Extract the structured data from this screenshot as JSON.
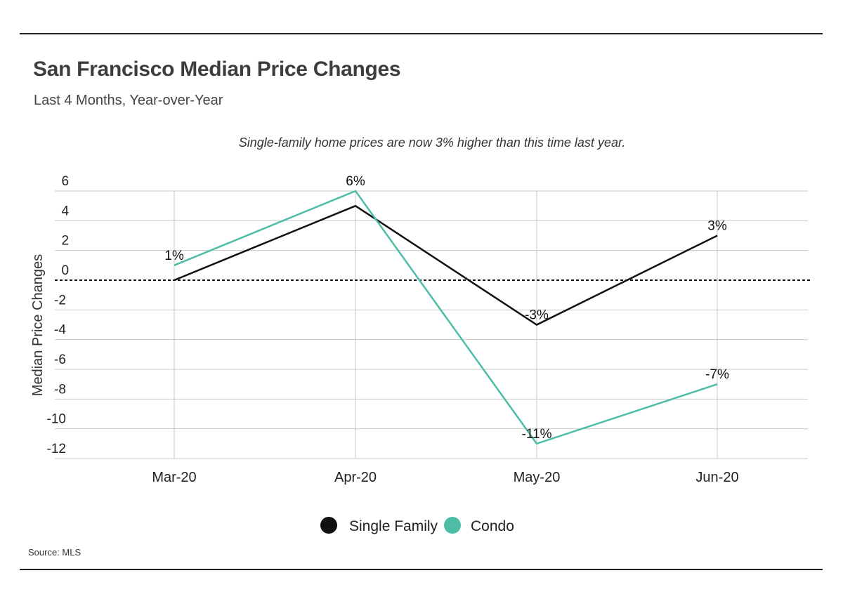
{
  "header": {
    "title": "San Francisco Median Price Changes",
    "subtitle": "Last 4 Months, Year-over-Year"
  },
  "footer": {
    "source": "Source: MLS"
  },
  "colors": {
    "single_family": "#111111",
    "condo": "#4dbda8",
    "grid": "#c8c8c8",
    "zero_line": "#111111"
  },
  "chart_data": {
    "type": "line",
    "annotation": "Single-family home prices are now 3% higher than this time last year.",
    "ylabel": "Median Price Changes",
    "xlabel": "",
    "categories": [
      "Mar-20",
      "Apr-20",
      "May-20",
      "Jun-20"
    ],
    "ylim": [
      -12,
      6
    ],
    "yticks": [
      6,
      4,
      2,
      0,
      -2,
      -4,
      -6,
      -8,
      -10,
      -12
    ],
    "grid": true,
    "zero_line": "dashed",
    "legend_position": "bottom-center",
    "series": [
      {
        "name": "Single Family",
        "values": [
          0,
          5,
          -3,
          3
        ],
        "labels": [
          null,
          null,
          "-3%",
          "3%"
        ],
        "color": "#111111"
      },
      {
        "name": "Condo",
        "values": [
          1,
          6,
          -11,
          -7
        ],
        "labels": [
          "1%",
          "6%",
          "-11%",
          "-7%"
        ],
        "color": "#4dbda8"
      }
    ]
  }
}
